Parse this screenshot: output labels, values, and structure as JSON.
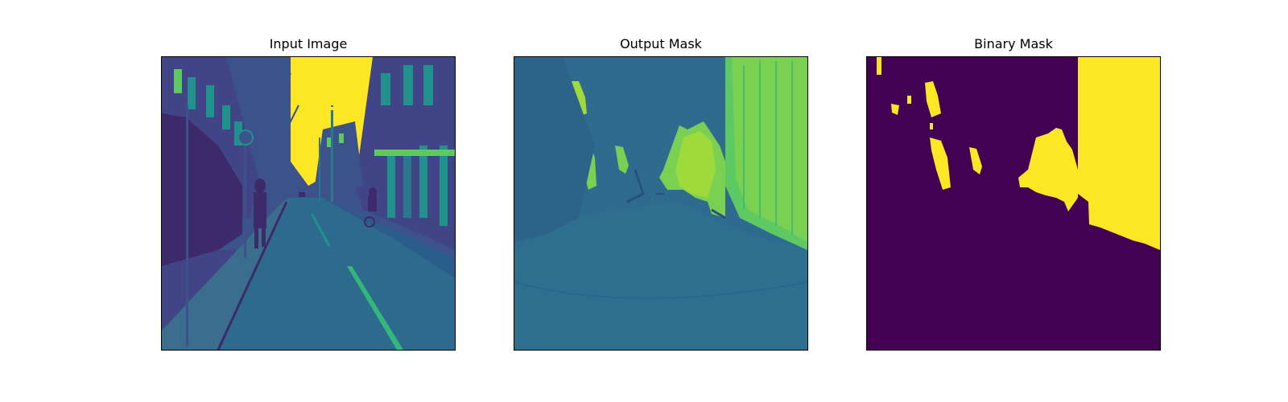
{
  "panels": [
    {
      "title": "Input Image",
      "content": "street-scene-grayscale-viridis"
    },
    {
      "title": "Output Mask",
      "content": "predicted-probability-mask"
    },
    {
      "title": "Binary Mask",
      "content": "thresholded-binary-mask"
    }
  ],
  "colormap": {
    "low": "#440154",
    "low_mid": "#3b528b",
    "mid": "#21918c",
    "high_mid": "#5ec962",
    "high": "#fde725"
  }
}
